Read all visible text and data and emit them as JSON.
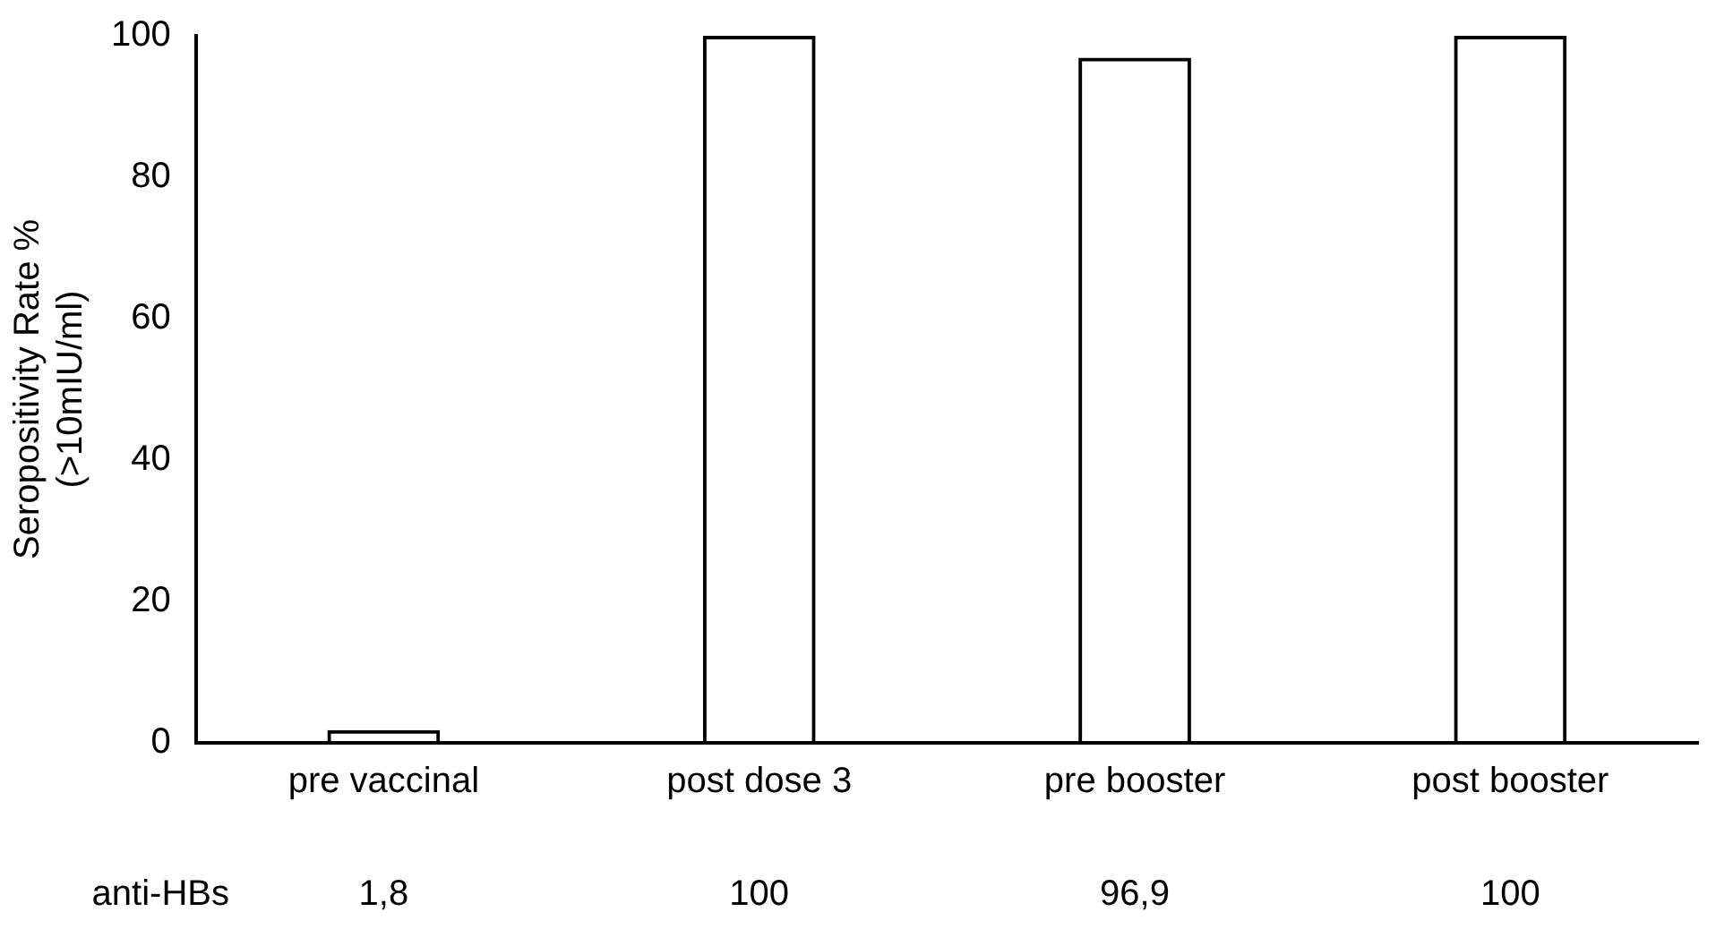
{
  "chart_data": {
    "type": "bar",
    "ylabel": "Seropositivity Rate %\n(>10mIU/ml)",
    "categories": [
      "pre vaccinal",
      "post dose 3",
      "pre booster",
      "post booster"
    ],
    "values": [
      1.8,
      100,
      96.9,
      100
    ],
    "value_labels": [
      "1,8",
      "100",
      "96,9",
      "100"
    ],
    "color": "#000000",
    "ylim": [
      0,
      100
    ],
    "yticks": [
      0,
      20,
      40,
      60,
      80,
      100
    ],
    "grid": false,
    "legend": false,
    "annotations": [
      "anti-HBs"
    ]
  }
}
